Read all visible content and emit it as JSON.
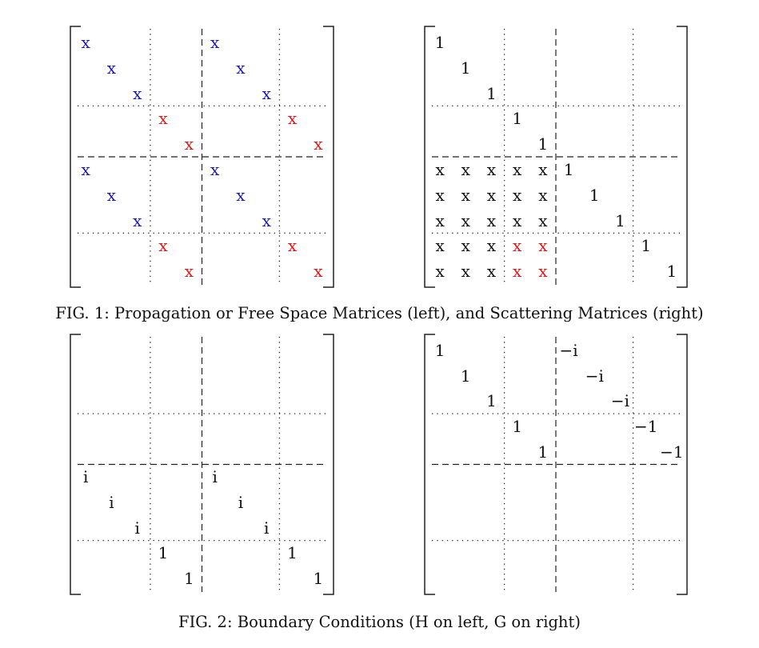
{
  "colors": {
    "blue": "#1a1ab0",
    "red": "#e01818",
    "black": "#111111"
  },
  "captions": {
    "fig1": "FIG. 1: Propagation or Free Space Matrices (left), and Scattering Matrices (right)",
    "fig2": "FIG. 2: Boundary Conditions (H on left, G on right)"
  },
  "matrices": {
    "propagation": {
      "entries": [
        {
          "r": 0,
          "c": 0,
          "t": "x",
          "k": "blue"
        },
        {
          "r": 0,
          "c": 5,
          "t": "x",
          "k": "blue"
        },
        {
          "r": 1,
          "c": 1,
          "t": "x",
          "k": "blue"
        },
        {
          "r": 1,
          "c": 6,
          "t": "x",
          "k": "blue"
        },
        {
          "r": 2,
          "c": 2,
          "t": "x",
          "k": "blue"
        },
        {
          "r": 2,
          "c": 7,
          "t": "x",
          "k": "blue"
        },
        {
          "r": 3,
          "c": 3,
          "t": "x",
          "k": "red"
        },
        {
          "r": 3,
          "c": 8,
          "t": "x",
          "k": "red"
        },
        {
          "r": 4,
          "c": 4,
          "t": "x",
          "k": "red"
        },
        {
          "r": 4,
          "c": 9,
          "t": "x",
          "k": "red"
        },
        {
          "r": 5,
          "c": 0,
          "t": "x",
          "k": "blue"
        },
        {
          "r": 5,
          "c": 5,
          "t": "x",
          "k": "blue"
        },
        {
          "r": 6,
          "c": 1,
          "t": "x",
          "k": "blue"
        },
        {
          "r": 6,
          "c": 6,
          "t": "x",
          "k": "blue"
        },
        {
          "r": 7,
          "c": 2,
          "t": "x",
          "k": "blue"
        },
        {
          "r": 7,
          "c": 7,
          "t": "x",
          "k": "blue"
        },
        {
          "r": 8,
          "c": 3,
          "t": "x",
          "k": "red"
        },
        {
          "r": 8,
          "c": 8,
          "t": "x",
          "k": "red"
        },
        {
          "r": 9,
          "c": 4,
          "t": "x",
          "k": "red"
        },
        {
          "r": 9,
          "c": 9,
          "t": "x",
          "k": "red"
        }
      ]
    },
    "scattering": {
      "entries": [
        {
          "r": 0,
          "c": 0,
          "t": "1",
          "k": "black"
        },
        {
          "r": 1,
          "c": 1,
          "t": "1",
          "k": "black"
        },
        {
          "r": 2,
          "c": 2,
          "t": "1",
          "k": "black"
        },
        {
          "r": 3,
          "c": 3,
          "t": "1",
          "k": "black"
        },
        {
          "r": 4,
          "c": 4,
          "t": "1",
          "k": "black"
        },
        {
          "r": 5,
          "c": 0,
          "t": "x",
          "k": "black"
        },
        {
          "r": 5,
          "c": 1,
          "t": "x",
          "k": "black"
        },
        {
          "r": 5,
          "c": 2,
          "t": "x",
          "k": "black"
        },
        {
          "r": 5,
          "c": 3,
          "t": "x",
          "k": "black"
        },
        {
          "r": 5,
          "c": 4,
          "t": "x",
          "k": "black"
        },
        {
          "r": 5,
          "c": 5,
          "t": "1",
          "k": "black"
        },
        {
          "r": 6,
          "c": 0,
          "t": "x",
          "k": "black"
        },
        {
          "r": 6,
          "c": 1,
          "t": "x",
          "k": "black"
        },
        {
          "r": 6,
          "c": 2,
          "t": "x",
          "k": "black"
        },
        {
          "r": 6,
          "c": 3,
          "t": "x",
          "k": "black"
        },
        {
          "r": 6,
          "c": 4,
          "t": "x",
          "k": "black"
        },
        {
          "r": 6,
          "c": 6,
          "t": "1",
          "k": "black"
        },
        {
          "r": 7,
          "c": 0,
          "t": "x",
          "k": "black"
        },
        {
          "r": 7,
          "c": 1,
          "t": "x",
          "k": "black"
        },
        {
          "r": 7,
          "c": 2,
          "t": "x",
          "k": "black"
        },
        {
          "r": 7,
          "c": 3,
          "t": "x",
          "k": "black"
        },
        {
          "r": 7,
          "c": 4,
          "t": "x",
          "k": "black"
        },
        {
          "r": 7,
          "c": 7,
          "t": "1",
          "k": "black"
        },
        {
          "r": 8,
          "c": 0,
          "t": "x",
          "k": "black"
        },
        {
          "r": 8,
          "c": 1,
          "t": "x",
          "k": "black"
        },
        {
          "r": 8,
          "c": 2,
          "t": "x",
          "k": "black"
        },
        {
          "r": 8,
          "c": 3,
          "t": "x",
          "k": "red"
        },
        {
          "r": 8,
          "c": 4,
          "t": "x",
          "k": "red"
        },
        {
          "r": 8,
          "c": 8,
          "t": "1",
          "k": "black"
        },
        {
          "r": 9,
          "c": 0,
          "t": "x",
          "k": "black"
        },
        {
          "r": 9,
          "c": 1,
          "t": "x",
          "k": "black"
        },
        {
          "r": 9,
          "c": 2,
          "t": "x",
          "k": "black"
        },
        {
          "r": 9,
          "c": 3,
          "t": "x",
          "k": "red"
        },
        {
          "r": 9,
          "c": 4,
          "t": "x",
          "k": "red"
        },
        {
          "r": 9,
          "c": 9,
          "t": "1",
          "k": "black"
        }
      ]
    },
    "boundary_h": {
      "entries": [
        {
          "r": 5,
          "c": 0,
          "t": "i",
          "k": "black"
        },
        {
          "r": 5,
          "c": 5,
          "t": "i",
          "k": "black"
        },
        {
          "r": 6,
          "c": 1,
          "t": "i",
          "k": "black"
        },
        {
          "r": 6,
          "c": 6,
          "t": "i",
          "k": "black"
        },
        {
          "r": 7,
          "c": 2,
          "t": "i",
          "k": "black"
        },
        {
          "r": 7,
          "c": 7,
          "t": "i",
          "k": "black"
        },
        {
          "r": 8,
          "c": 3,
          "t": "1",
          "k": "black"
        },
        {
          "r": 8,
          "c": 8,
          "t": "1",
          "k": "black"
        },
        {
          "r": 9,
          "c": 4,
          "t": "1",
          "k": "black"
        },
        {
          "r": 9,
          "c": 9,
          "t": "1",
          "k": "black"
        }
      ]
    },
    "boundary_g": {
      "entries": [
        {
          "r": 0,
          "c": 0,
          "t": "1",
          "k": "black"
        },
        {
          "r": 0,
          "c": 5,
          "t": "−i",
          "k": "black"
        },
        {
          "r": 1,
          "c": 1,
          "t": "1",
          "k": "black"
        },
        {
          "r": 1,
          "c": 6,
          "t": "−i",
          "k": "black"
        },
        {
          "r": 2,
          "c": 2,
          "t": "1",
          "k": "black"
        },
        {
          "r": 2,
          "c": 7,
          "t": "−i",
          "k": "black"
        },
        {
          "r": 3,
          "c": 3,
          "t": "1",
          "k": "black"
        },
        {
          "r": 3,
          "c": 8,
          "t": "−1",
          "k": "black"
        },
        {
          "r": 4,
          "c": 4,
          "t": "1",
          "k": "black"
        },
        {
          "r": 4,
          "c": 9,
          "t": "−1",
          "k": "black"
        }
      ]
    }
  }
}
